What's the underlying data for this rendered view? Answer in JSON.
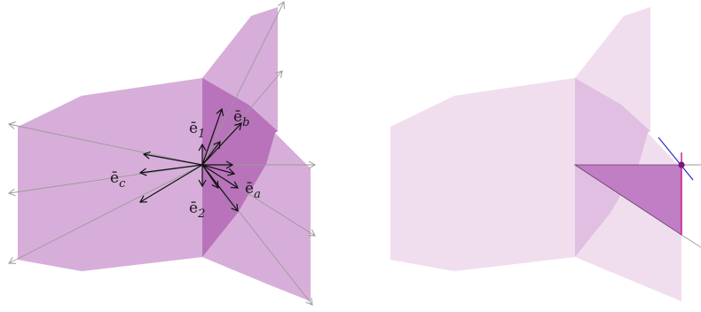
{
  "colors": {
    "fan_fill": "#c47cc6",
    "center_fill": "#a24aa6",
    "light_fill": "#ebd3ed",
    "mid_fill": "#d9b1dc",
    "triangle_fill": "#b76dbb",
    "ray_stroke": "#9a9a9a",
    "vector_stroke": "#111111",
    "tangent_line": "#2222dd",
    "normal_line": "#cc1188",
    "point": "#7a1a7a"
  },
  "labels": {
    "e1": {
      "main": "ē",
      "sub": "1"
    },
    "eb": {
      "main": "ē",
      "sub": "b"
    },
    "ec": {
      "main": "ē",
      "sub": "c"
    },
    "ea": {
      "main": "ē",
      "sub": "a"
    },
    "e2": {
      "main": "ē",
      "sub": "2"
    }
  }
}
